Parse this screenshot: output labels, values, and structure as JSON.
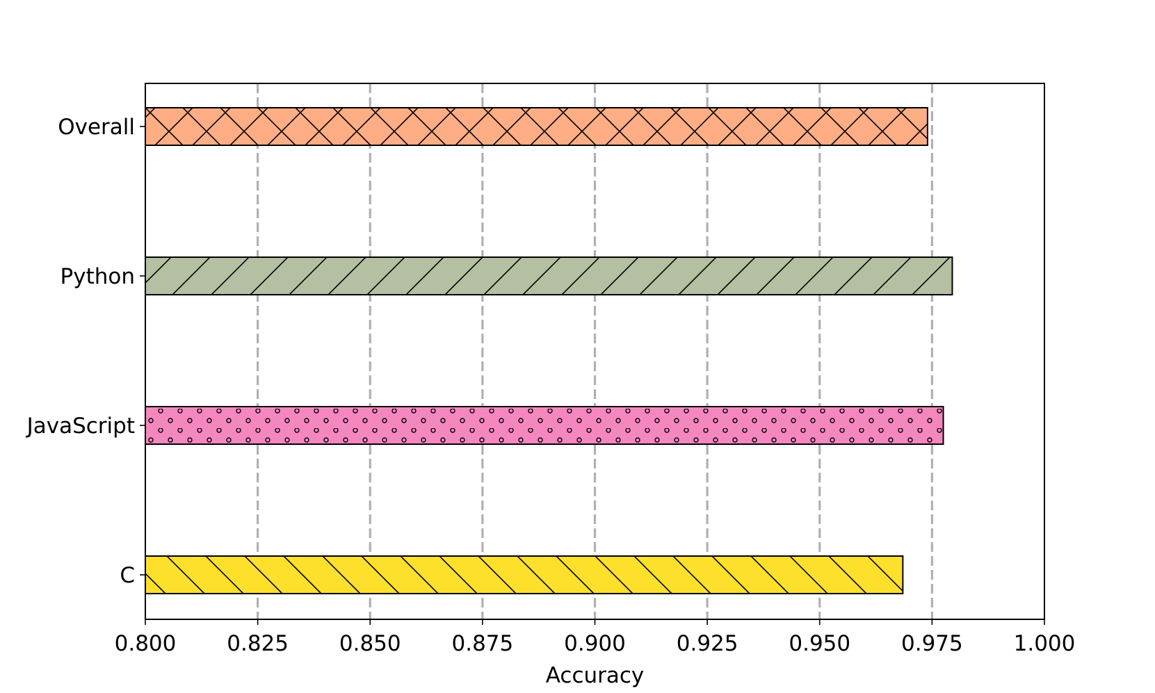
{
  "chart_data": {
    "type": "bar",
    "orientation": "horizontal",
    "title": "",
    "xlabel": "Accuracy",
    "ylabel": "",
    "xlim": [
      0.8,
      1.0
    ],
    "xticks": [
      0.8,
      0.825,
      0.85,
      0.875,
      0.9,
      0.925,
      0.95,
      0.975,
      1.0
    ],
    "xtick_labels": [
      "0.800",
      "0.825",
      "0.850",
      "0.875",
      "0.900",
      "0.925",
      "0.950",
      "0.975",
      "1.000"
    ],
    "grid": "x, dashed, gray",
    "categories": [
      "Overall",
      "Python",
      "JavaScript",
      "C"
    ],
    "values": [
      0.974,
      0.9795,
      0.9775,
      0.9685
    ],
    "colors": [
      "#ffad85",
      "#b5bfa1",
      "#f587bf",
      "#fde02b"
    ],
    "hatches": [
      "crosshatch",
      "forward-diagonal",
      "dots",
      "back-diagonal"
    ]
  }
}
